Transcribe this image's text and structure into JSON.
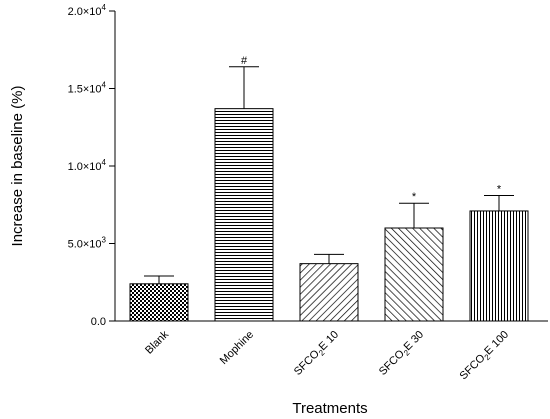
{
  "chart_data": {
    "type": "bar",
    "title": "",
    "xlabel": "Treatments",
    "ylabel": "Increase in baseline (%)",
    "ylim": [
      0,
      20000
    ],
    "yticks": [
      {
        "value": 0,
        "label": "0.0"
      },
      {
        "value": 5000,
        "label": "5.0×10",
        "exp": "3"
      },
      {
        "value": 10000,
        "label": "1.0×10",
        "exp": "4"
      },
      {
        "value": 15000,
        "label": "1.5×10",
        "exp": "4"
      },
      {
        "value": 20000,
        "label": "2.0×10",
        "exp": "4"
      }
    ],
    "grid": false,
    "legend": "none",
    "categories": [
      {
        "label": "Blank",
        "pre": "Blank",
        "sub": "",
        "post": ""
      },
      {
        "label": "Mophine",
        "pre": "Mophine",
        "sub": "",
        "post": ""
      },
      {
        "label": "SFCO2E 10",
        "pre": "SFCO",
        "sub": "2",
        "post": "E 10"
      },
      {
        "label": "SFCO2E 30",
        "pre": "SFCO",
        "sub": "2",
        "post": "E 30"
      },
      {
        "label": "SFCO2E 100",
        "pre": "SFCO",
        "sub": "2",
        "post": "E 100"
      }
    ],
    "values": [
      2400,
      13700,
      3700,
      6000,
      7100
    ],
    "errors": [
      500,
      2700,
      600,
      1600,
      1000
    ],
    "annotations": [
      "",
      "#",
      "",
      "*",
      "*"
    ],
    "patterns": [
      "checker",
      "horizontal",
      "diagonal-back",
      "diagonal-forward",
      "vertical"
    ]
  }
}
